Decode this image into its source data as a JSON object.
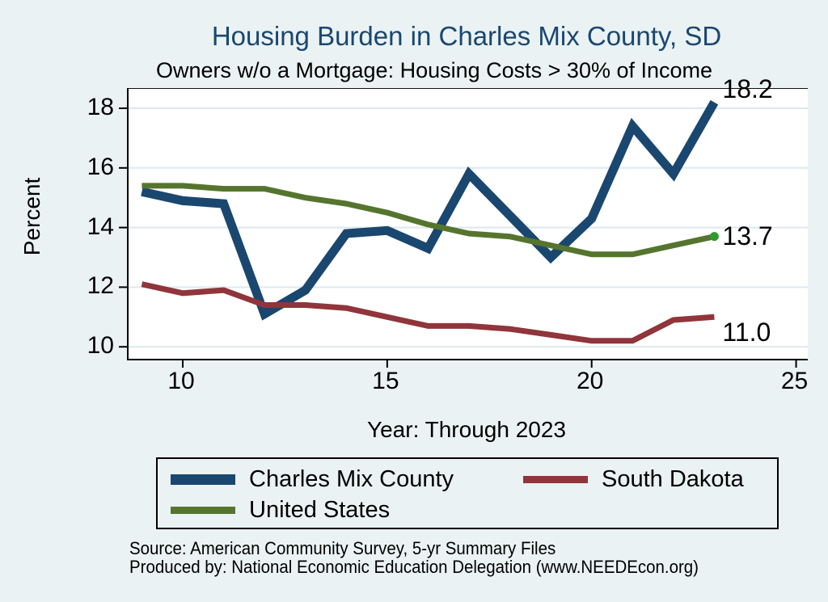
{
  "title": "Housing Burden in Charles Mix County, SD",
  "subtitle": "Owners w/o a Mortgage: Housing Costs > 30% of Income",
  "y_axis": {
    "title": "Percent",
    "ticks": [
      18,
      16,
      14,
      12,
      10
    ]
  },
  "x_axis": {
    "title": "Year: Through 2023",
    "ticks": [
      10,
      15,
      20,
      25
    ]
  },
  "legend": {
    "items": [
      {
        "label": "Charles Mix County",
        "color": "#1a476f",
        "swatch_height": 13
      },
      {
        "label": "South Dakota",
        "color": "#90353b",
        "swatch_height": 9
      },
      {
        "label": "United States",
        "color": "#55752f",
        "swatch_height": 9
      }
    ]
  },
  "source_line1": "Source: American Community Survey, 5-yr Summary Files",
  "source_line2": "Produced by: National Economic Education Delegation (www.NEEDEcon.org)",
  "colors": {
    "background": "#eaf2f3",
    "plot_background": "#ffffff",
    "grid": "#dce9ee",
    "axis": "#000000",
    "title_text": "#1a476f",
    "end_marker": "#2e9b2e"
  },
  "chart_data": {
    "type": "line",
    "x": [
      2009,
      2010,
      2011,
      2012,
      2013,
      2014,
      2015,
      2016,
      2017,
      2018,
      2019,
      2020,
      2021,
      2022,
      2023
    ],
    "x_tick_values": [
      10,
      15,
      20,
      25
    ],
    "y_tick_values": [
      10,
      12,
      14,
      16,
      18
    ],
    "xlim": [
      9,
      25.3
    ],
    "ylim": [
      9.6,
      18.65
    ],
    "grid": "horizontal",
    "legend_position": "bottom",
    "title": "Housing Burden in Charles Mix County, SD",
    "subtitle": "Owners w/o a Mortgage: Housing Costs > 30% of Income",
    "xlabel": "Year: Through 2023",
    "ylabel": "Percent",
    "series": [
      {
        "name": "Charles Mix County",
        "color": "#1a476f",
        "stroke_width": 11,
        "values": [
          15.2,
          14.9,
          14.8,
          11.1,
          11.9,
          13.8,
          13.9,
          13.3,
          15.8,
          14.4,
          13.0,
          14.3,
          17.4,
          15.8,
          18.2
        ],
        "end_label": "18.2",
        "end_label_dy": -16,
        "end_marker": false
      },
      {
        "name": "South Dakota",
        "color": "#90353b",
        "stroke_width": 7,
        "values": [
          12.1,
          11.8,
          11.9,
          11.4,
          11.4,
          11.3,
          11.0,
          10.7,
          10.7,
          10.6,
          10.4,
          10.2,
          10.2,
          10.9,
          11.0
        ],
        "end_label": "11.0",
        "end_label_dy": 20,
        "end_marker": false
      },
      {
        "name": "United States",
        "color": "#55752f",
        "stroke_width": 7,
        "values": [
          15.4,
          15.4,
          15.3,
          15.3,
          15.0,
          14.8,
          14.5,
          14.1,
          13.8,
          13.7,
          13.4,
          13.1,
          13.1,
          13.4,
          13.7
        ],
        "end_label": "13.7",
        "end_label_dy": 0,
        "end_marker": true
      }
    ]
  }
}
